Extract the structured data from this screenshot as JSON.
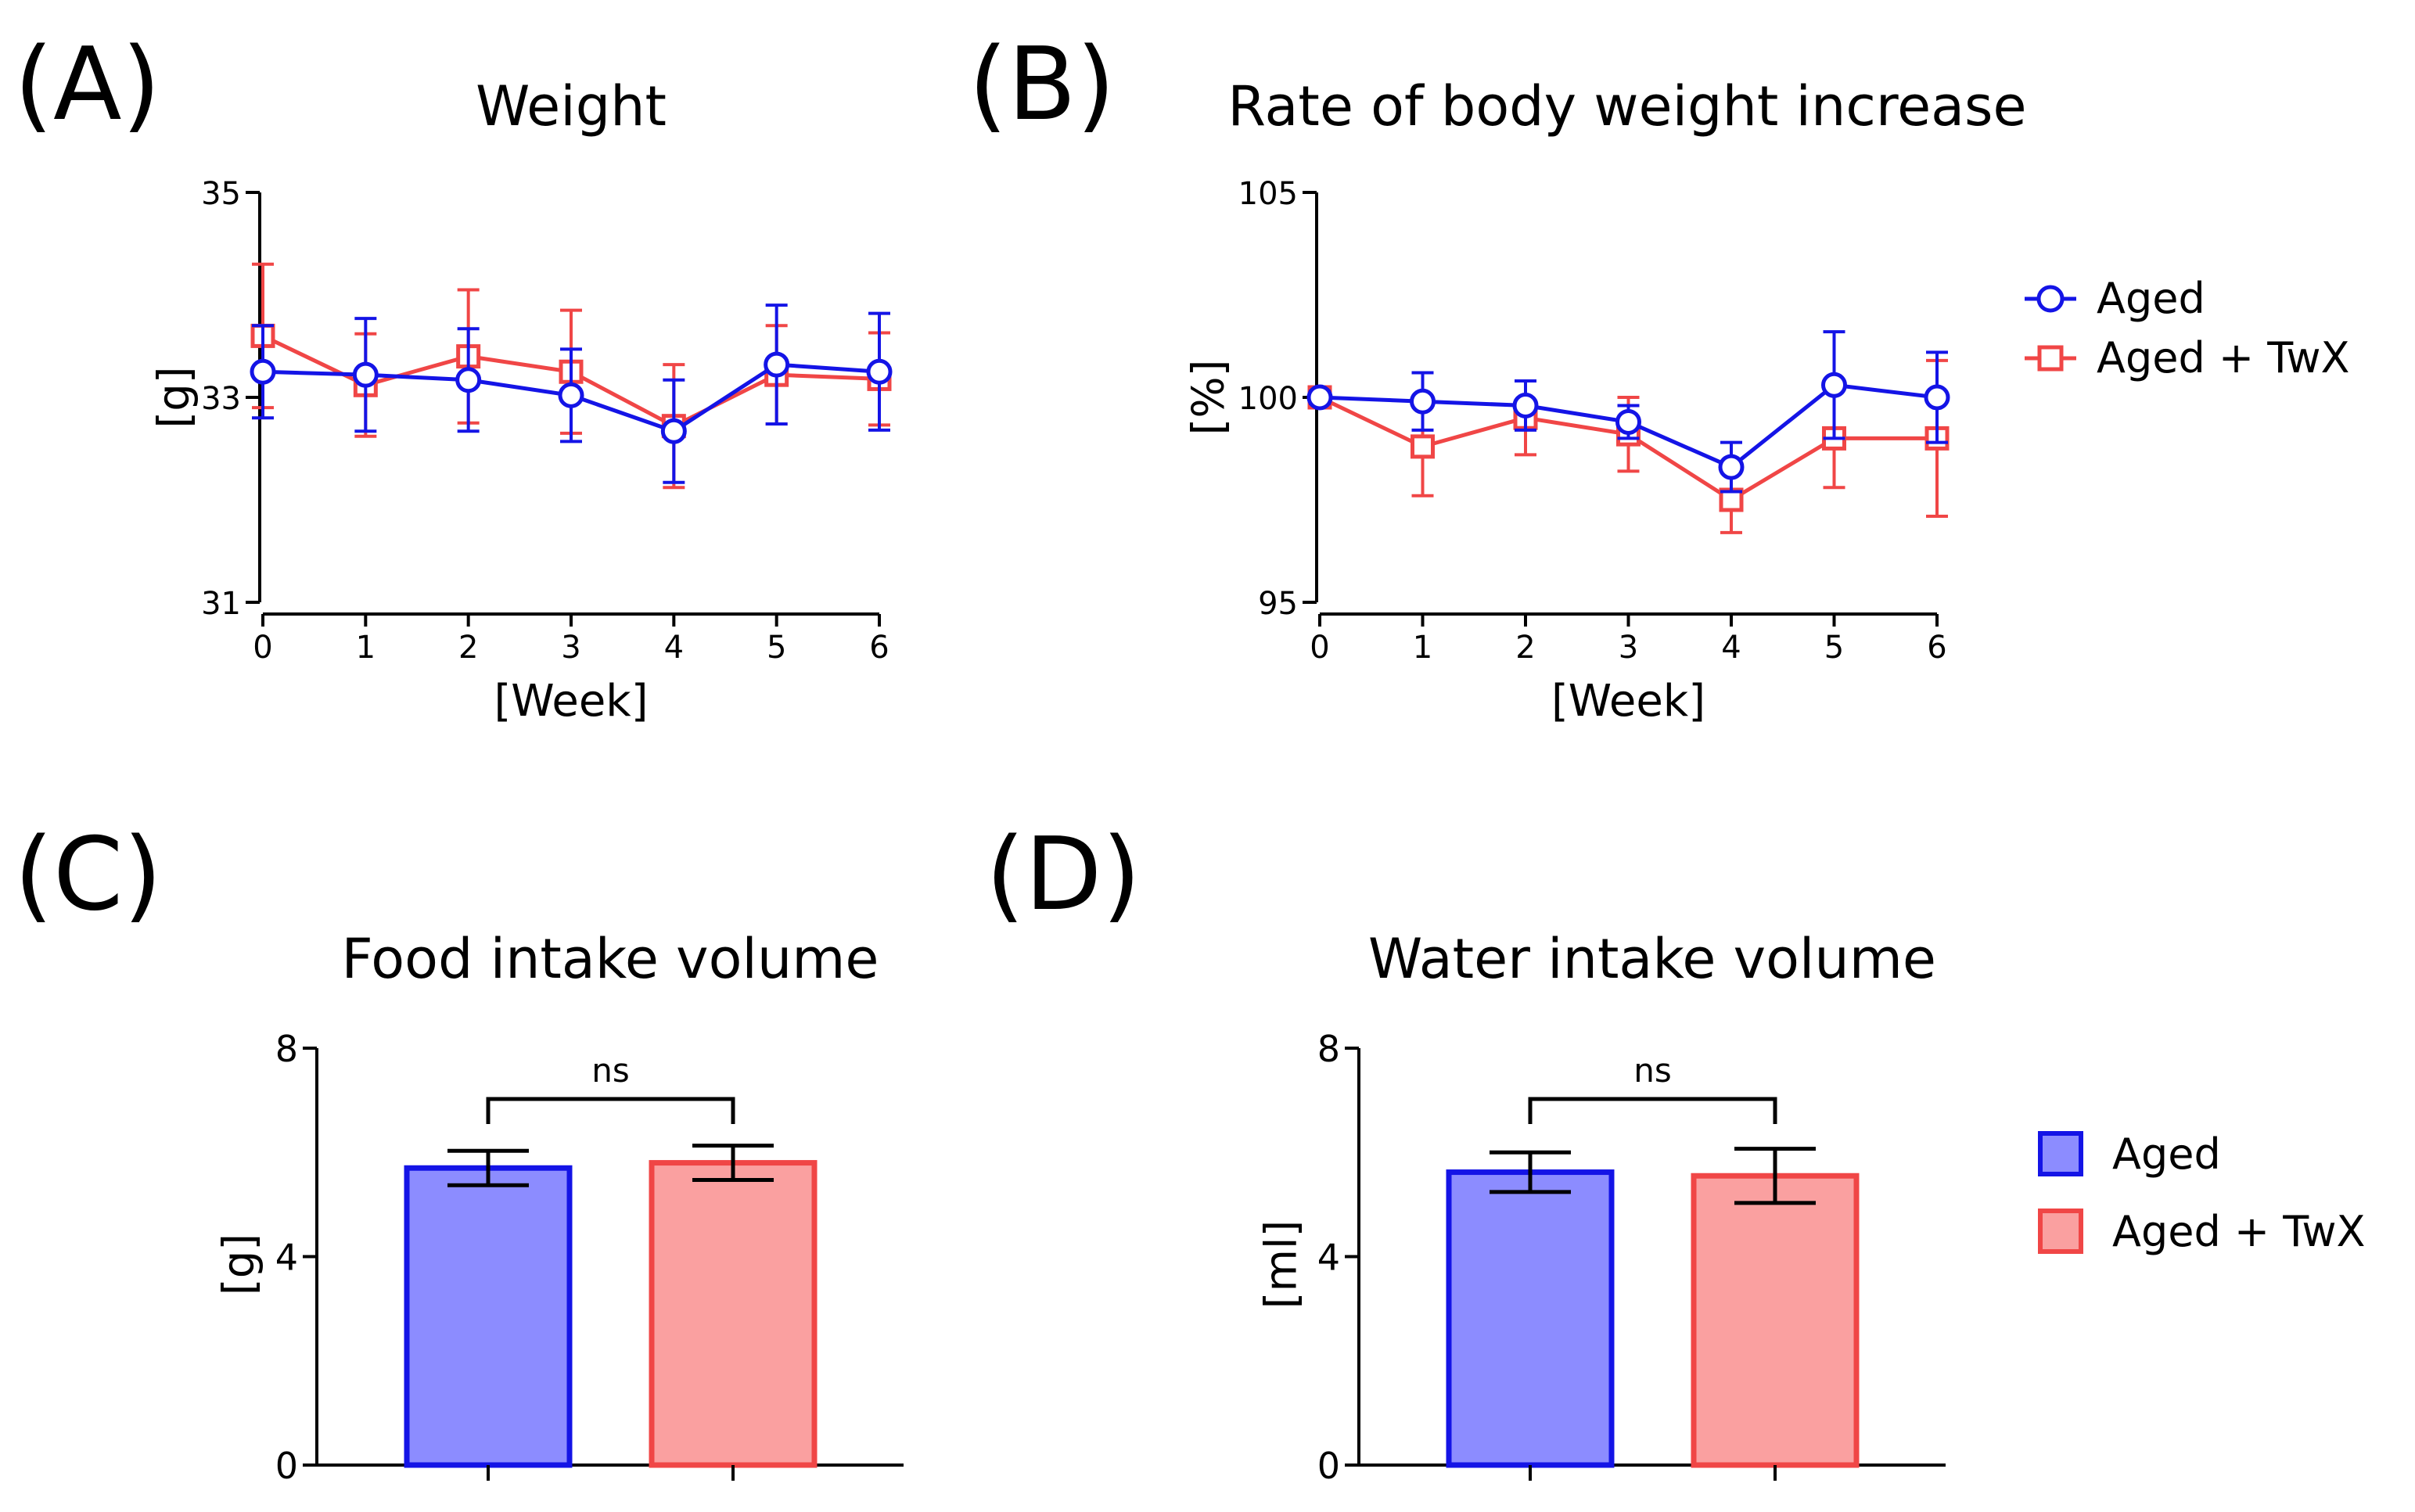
{
  "colors": {
    "aged_line": "#1414E6",
    "aged_fill": "#8C8CFF",
    "twx_line": "#F04646",
    "twx_fill": "#FAA0A0",
    "axis": "#000000"
  },
  "panel_labels": [
    "(A)",
    "(B)",
    "(C)",
    "(D)"
  ],
  "legend_lines": {
    "aged": "Aged",
    "twx": "Aged + TwX"
  },
  "legend_bars": {
    "aged": "Aged",
    "twx": "Aged + TwX"
  },
  "chart_data": [
    {
      "id": "A",
      "type": "line",
      "title": "Weight",
      "xlabel": "[Week]",
      "ylabel": "[g]",
      "x": [
        0,
        1,
        2,
        3,
        4,
        5,
        6
      ],
      "xlim": [
        0,
        6
      ],
      "ylim": [
        31,
        35
      ],
      "yticks": [
        31,
        33,
        35
      ],
      "series": [
        {
          "name": "Aged",
          "values": [
            33.25,
            33.22,
            33.17,
            33.02,
            32.67,
            33.32,
            33.25
          ],
          "errors": [
            0.45,
            0.55,
            0.5,
            0.45,
            0.5,
            0.58,
            0.57
          ]
        },
        {
          "name": "Aged + TwX",
          "values": [
            33.6,
            33.12,
            33.4,
            33.25,
            32.72,
            33.22,
            33.18
          ],
          "errors": [
            0.7,
            0.5,
            0.65,
            0.6,
            0.6,
            0.48,
            0.45
          ]
        }
      ]
    },
    {
      "id": "B",
      "type": "line",
      "title": "Rate of body weight increase",
      "xlabel": "[Week]",
      "ylabel": "[%]",
      "x": [
        0,
        1,
        2,
        3,
        4,
        5,
        6
      ],
      "xlim": [
        0,
        6
      ],
      "ylim": [
        95,
        105
      ],
      "yticks": [
        95,
        100,
        105
      ],
      "series": [
        {
          "name": "Aged",
          "values": [
            100.0,
            99.9,
            99.8,
            99.4,
            98.3,
            100.3,
            100.0
          ],
          "errors": [
            0.15,
            0.7,
            0.6,
            0.4,
            0.6,
            1.3,
            1.1
          ]
        },
        {
          "name": "Aged + TwX",
          "values": [
            100.0,
            98.8,
            99.5,
            99.1,
            97.5,
            99.0,
            99.0
          ],
          "errors": [
            0.2,
            1.2,
            0.9,
            0.9,
            0.8,
            1.2,
            1.9
          ]
        }
      ]
    },
    {
      "id": "C",
      "type": "bar",
      "title": "Food intake volume",
      "ylabel": "[g]",
      "categories": [
        "Aged",
        "Aged + TwX"
      ],
      "values": [
        5.7,
        5.8
      ],
      "errors": [
        0.33,
        0.33
      ],
      "ylim": [
        0,
        8
      ],
      "yticks": [
        0,
        4,
        8
      ],
      "annotation": "ns"
    },
    {
      "id": "D",
      "type": "bar",
      "title": "Water intake volume",
      "ylabel": "[ml]",
      "categories": [
        "Aged",
        "Aged + TwX"
      ],
      "values": [
        5.62,
        5.55
      ],
      "errors": [
        0.38,
        0.52
      ],
      "ylim": [
        0,
        8
      ],
      "yticks": [
        0,
        4,
        8
      ],
      "annotation": "ns"
    }
  ]
}
